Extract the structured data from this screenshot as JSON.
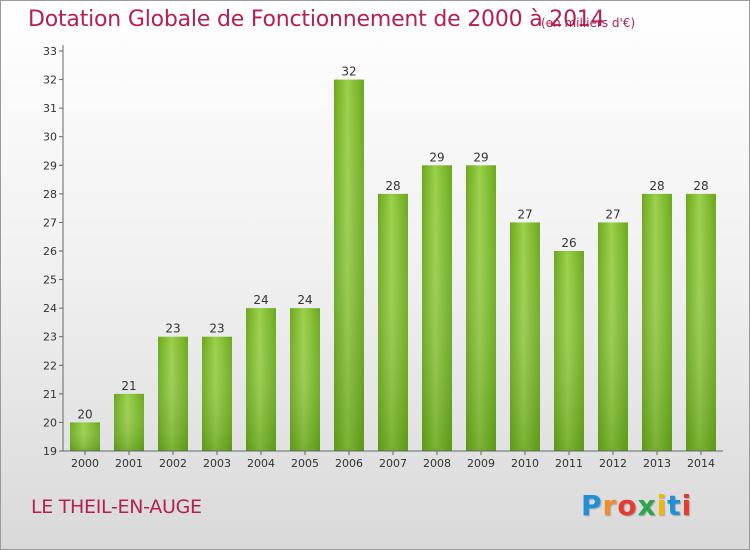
{
  "chart_data": {
    "type": "bar",
    "title": "Dotation Globale de Fonctionnement de 2000 à 2014",
    "subtitle": "(en milliers d'€)",
    "categories": [
      "2000",
      "2001",
      "2002",
      "2003",
      "2004",
      "2005",
      "2006",
      "2007",
      "2008",
      "2009",
      "2010",
      "2011",
      "2012",
      "2013",
      "2014"
    ],
    "values": [
      20,
      21,
      23,
      23,
      24,
      24,
      32,
      28,
      29,
      29,
      27,
      26,
      27,
      28,
      28
    ],
    "yticks": [
      19,
      20,
      21,
      22,
      23,
      24,
      25,
      26,
      27,
      28,
      29,
      30,
      31,
      32,
      33
    ],
    "ylim": [
      19,
      33
    ],
    "xlabel": "",
    "ylabel": "",
    "grid": false,
    "bar_color": "#7fbf2a"
  },
  "footer": {
    "commune": "LE THEIL-EN-AUGE",
    "logo_text": "Proxiti",
    "logo_colors": [
      "#1f8fd6",
      "#f28c28",
      "#e63a2e",
      "#2da44e",
      "#f2b705",
      "#1f8fd6",
      "#e63a2e"
    ]
  }
}
